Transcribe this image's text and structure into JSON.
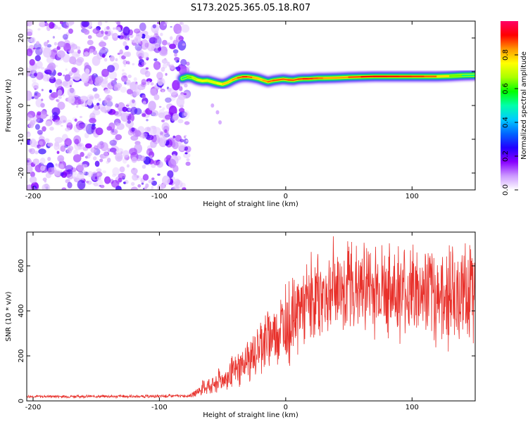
{
  "figure_title": "S173.2025.365.05.18.R07",
  "chart_data": [
    {
      "type": "heatmap",
      "title": "",
      "xlabel": "Height of straight line (km)",
      "ylabel": "Frequency (Hz)",
      "xlim": [
        -205,
        150
      ],
      "ylim": [
        -25,
        25
      ],
      "xticks": [
        -200,
        -100,
        0,
        100
      ],
      "yticks": [
        -20,
        -10,
        0,
        10,
        20
      ],
      "colorbar": {
        "label": "Normalized spectral amplitude",
        "range": [
          0,
          1
        ],
        "ticks": [
          0.0,
          0.2,
          0.4,
          0.6,
          0.8
        ],
        "tick_labels": [
          "0.0",
          "0.2",
          "0.4",
          "0.6",
          "0.8"
        ],
        "colormap": [
          "#ffffff",
          "#cc99ff",
          "#8800ff",
          "#2200ff",
          "#0066ff",
          "#00ccff",
          "#00ffaa",
          "#00ff00",
          "#aaff00",
          "#ffff00",
          "#ff9900",
          "#ff0000",
          "#ff0066"
        ]
      },
      "noise_region": {
        "x_range": [
          -205,
          -80
        ],
        "freq_range": [
          -25,
          25
        ],
        "amplitude": "low (0.05-0.2)"
      },
      "signal_ridge": {
        "x": [
          -82,
          -78,
          -74,
          -70,
          -66,
          -62,
          -58,
          -54,
          -50,
          -46,
          -42,
          -38,
          -34,
          -30,
          -26,
          -22,
          -18,
          -14,
          -10,
          -6,
          -2,
          2,
          6,
          10,
          14,
          18,
          22,
          26,
          30,
          40,
          50,
          60,
          70,
          80,
          90,
          100,
          110,
          120,
          130,
          140,
          150
        ],
        "freq": [
          8.0,
          8.5,
          8.3,
          7.6,
          7.3,
          7.4,
          7.0,
          6.6,
          6.3,
          6.8,
          7.6,
          8.2,
          8.5,
          8.5,
          8.3,
          8.0,
          7.5,
          7.0,
          7.4,
          7.6,
          7.8,
          7.6,
          7.5,
          7.8,
          7.9,
          7.9,
          8.0,
          8.1,
          8.1,
          8.2,
          8.4,
          8.5,
          8.6,
          8.6,
          8.6,
          8.6,
          8.6,
          8.6,
          8.7,
          8.9,
          9.0
        ],
        "amplitude": [
          0.45,
          0.6,
          0.65,
          0.7,
          0.75,
          0.7,
          0.72,
          0.7,
          0.8,
          0.78,
          0.8,
          0.85,
          0.88,
          0.9,
          0.82,
          0.78,
          0.8,
          0.85,
          0.86,
          0.88,
          0.85,
          0.87,
          0.88,
          0.86,
          0.9,
          0.9,
          0.88,
          0.86,
          0.85,
          0.8,
          0.85,
          0.9,
          0.92,
          0.92,
          0.9,
          0.9,
          0.88,
          0.85,
          0.7,
          0.55,
          0.5
        ]
      },
      "secondary_feature": {
        "x": [
          -58,
          -54,
          -52
        ],
        "freq": [
          0,
          -2,
          -5
        ]
      }
    },
    {
      "type": "line",
      "title": "",
      "xlabel": "Height of straight line (km)",
      "ylabel": "SNR (10 * v/v)",
      "xlim": [
        -205,
        150
      ],
      "ylim": [
        0,
        750
      ],
      "xticks": [
        -200,
        -100,
        0,
        100
      ],
      "yticks": [
        0,
        200,
        400,
        600
      ],
      "series": [
        {
          "name": "SNR",
          "color": "#e8302a",
          "x": [
            -205,
            -180,
            -160,
            -140,
            -120,
            -100,
            -90,
            -80,
            -75,
            -70,
            -65,
            -60,
            -55,
            -50,
            -45,
            -40,
            -35,
            -30,
            -25,
            -20,
            -15,
            -10,
            -5,
            0,
            5,
            10,
            15,
            20,
            25,
            30,
            35,
            40,
            45,
            50,
            55,
            60,
            65,
            70,
            75,
            80,
            85,
            90,
            95,
            100,
            105,
            110,
            115,
            120,
            125,
            130,
            135,
            140,
            145,
            150
          ],
          "mean": [
            20,
            20,
            20,
            20,
            20,
            20,
            22,
            22,
            25,
            40,
            60,
            70,
            80,
            95,
            110,
            130,
            155,
            180,
            210,
            250,
            280,
            300,
            320,
            340,
            370,
            400,
            420,
            440,
            460,
            480,
            490,
            500,
            505,
            510,
            510,
            505,
            505,
            500,
            500,
            495,
            495,
            490,
            485,
            480,
            480,
            475,
            475,
            470,
            470,
            470,
            470,
            475,
            480,
            480
          ],
          "spread": [
            8,
            8,
            8,
            8,
            8,
            8,
            8,
            8,
            10,
            25,
            40,
            50,
            60,
            70,
            80,
            90,
            100,
            110,
            130,
            150,
            170,
            190,
            200,
            210,
            220,
            230,
            230,
            240,
            240,
            250,
            250,
            250,
            250,
            250,
            250,
            250,
            250,
            250,
            250,
            250,
            260,
            260,
            260,
            260,
            260,
            270,
            270,
            270,
            270,
            270,
            260,
            260,
            250,
            250
          ]
        }
      ]
    }
  ]
}
